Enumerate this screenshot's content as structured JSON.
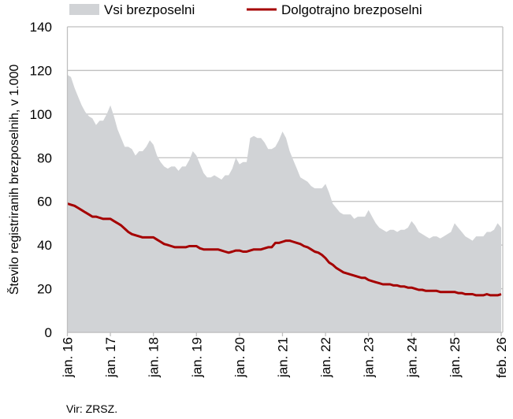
{
  "chart_data": {
    "type": "area+line",
    "title": "",
    "xlabel": "",
    "ylabel": "Število registriranih brezposelnih, v 1.000",
    "ylim": [
      0,
      140
    ],
    "yticks": [
      0,
      20,
      40,
      60,
      80,
      100,
      120,
      140
    ],
    "grid": true,
    "legend_position": "top",
    "x_start": "2016-01",
    "x_end": "2026-02",
    "xtick_labels": [
      "jan. 16",
      "jan. 17",
      "jan. 18",
      "jan. 19",
      "jan. 20",
      "jan. 21",
      "jan. 22",
      "jan. 23",
      "jan. 24",
      "jan. 25",
      "feb. 26"
    ],
    "series": [
      {
        "name": "Vsi brezposelni",
        "type": "area",
        "color": "#d1d3d6",
        "values": [
          118,
          117,
          112,
          108,
          104,
          101,
          99,
          98,
          95,
          97,
          97,
          100,
          104,
          99,
          93,
          89,
          85,
          85,
          84,
          81,
          83,
          83,
          85,
          88,
          86,
          81,
          78,
          76,
          75,
          76,
          76,
          74,
          76,
          76,
          79,
          83,
          81,
          77,
          73,
          71,
          71,
          72,
          71,
          70,
          72,
          72,
          75,
          80,
          77,
          78,
          78,
          89,
          90,
          89,
          89,
          87,
          84,
          84,
          85,
          88,
          92,
          89,
          83,
          79,
          75,
          71,
          70,
          69,
          67,
          66,
          66,
          66,
          68,
          64,
          59,
          57,
          55,
          54,
          54,
          54,
          52,
          53,
          53,
          53,
          56,
          53,
          50,
          48,
          47,
          46,
          47,
          47,
          46,
          47,
          47,
          48,
          51,
          49,
          46,
          45,
          44,
          43,
          44,
          44,
          43,
          44,
          45,
          46,
          50,
          48,
          46,
          44,
          43,
          42,
          44,
          44,
          44,
          46,
          46,
          47,
          50,
          48
        ]
      },
      {
        "name": "Dolgotrajno brezposelni",
        "type": "line",
        "color": "#a50000",
        "values": [
          59,
          58.5,
          58,
          57,
          56,
          55,
          54,
          53,
          53,
          52.5,
          52,
          52,
          52,
          51,
          50,
          49,
          47.5,
          46,
          45,
          44.5,
          44,
          43.5,
          43.5,
          43.5,
          43.5,
          42.5,
          41.5,
          40.5,
          40,
          39.5,
          39,
          39,
          39,
          39,
          39.5,
          39.5,
          39.5,
          38.5,
          38,
          38,
          38,
          38,
          38,
          37.5,
          37,
          36.5,
          37,
          37.5,
          37.5,
          37,
          37,
          37.5,
          38,
          38,
          38,
          38.5,
          39,
          39,
          41,
          41,
          41.5,
          42,
          42,
          41.5,
          41,
          40.5,
          39.5,
          39,
          38,
          37,
          36.5,
          35.5,
          34,
          32,
          31,
          29.5,
          28.5,
          27.5,
          27,
          26.5,
          26,
          25.5,
          25,
          25,
          24,
          23.5,
          23,
          22.5,
          22,
          22,
          22,
          21.5,
          21.5,
          21,
          21,
          20.5,
          20.5,
          20,
          19.5,
          19.5,
          19,
          19,
          19,
          19,
          18.5,
          18.5,
          18.5,
          18.5,
          18.5,
          18,
          18,
          17.5,
          17.5,
          17.5,
          17,
          17,
          17,
          17.5,
          17,
          17,
          17,
          17.5
        ]
      }
    ]
  },
  "source": "Vir: ZRSZ."
}
